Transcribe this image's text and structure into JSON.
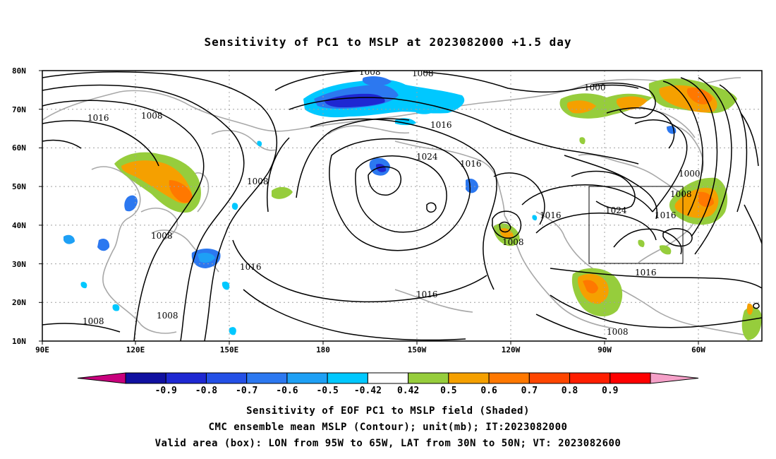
{
  "title": "Sensitivity of PC1 to MSLP at 2023082000 +1.5 day",
  "lat_labels": [
    "80N",
    "70N",
    "60N",
    "50N",
    "40N",
    "30N",
    "20N",
    "10N"
  ],
  "lon_labels": [
    "90E",
    "120E",
    "150E",
    "180",
    "150W",
    "120W",
    "90W",
    "60W"
  ],
  "contour_labels": [
    "1008",
    "1008",
    "1016",
    "1008",
    "1000",
    "1024",
    "1016",
    "1016",
    "1000",
    "1008",
    "1024",
    "1016",
    "1008",
    "1008",
    "1016",
    "1008",
    "1016",
    "1016",
    "1008",
    "1008",
    "1008",
    "1016"
  ],
  "colorbar": {
    "ticks": [
      "-0.9",
      "-0.8",
      "-0.7",
      "-0.6",
      "-0.5",
      "-0.42",
      "0.42",
      "0.5",
      "0.6",
      "0.7",
      "0.8",
      "0.9"
    ],
    "colors": [
      "#c8007d",
      "#1010a0",
      "#1e28d2",
      "#2450e6",
      "#2c78f0",
      "#1ea0f5",
      "#00c8ff",
      "#ffffff",
      "#96cd3c",
      "#f5a000",
      "#ff7800",
      "#ff4600",
      "#ff1e00",
      "#ff0000",
      "#f5a0c8"
    ]
  },
  "footer": {
    "line1": "Sensitivity of EOF PC1 to MSLP field (Shaded)",
    "line2": "CMC ensemble mean MSLP (Contour); unit(mb); IT:2023082000",
    "line3": "Valid area (box): LON from 95W to 65W, LAT from 30N to 50N; VT: 2023082600"
  }
}
